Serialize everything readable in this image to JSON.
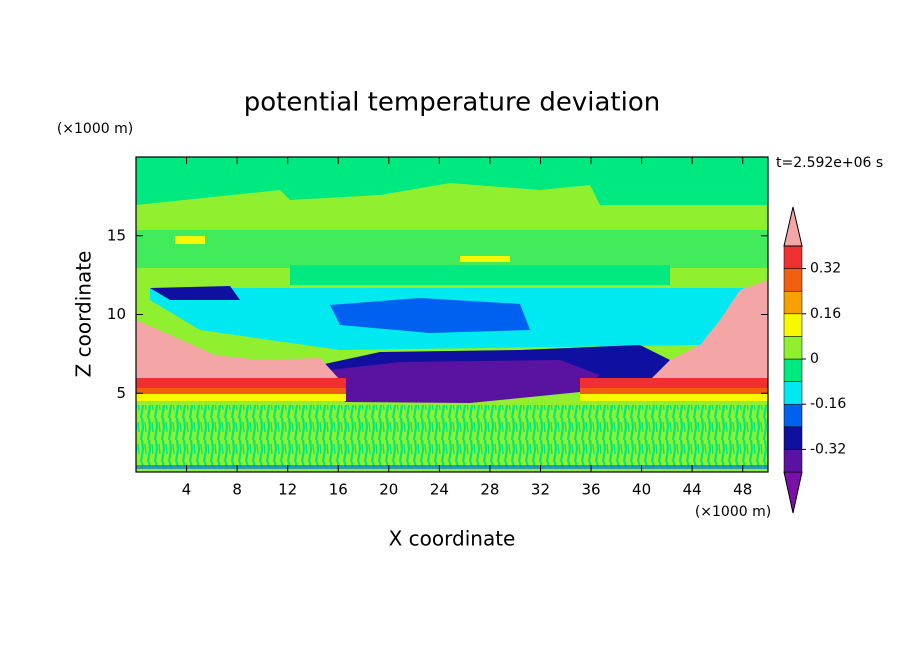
{
  "chart_data": {
    "type": "contour",
    "title": "potential temperature deviation",
    "x_label": "X coordinate",
    "y_label": "Z coordinate",
    "x_unit": "(×1000 m)",
    "y_unit": "(×1000 m)",
    "time_label": "t=2.592e+06 s",
    "xlim": [
      0,
      50
    ],
    "ylim": [
      0,
      20
    ],
    "xticks": [
      4,
      8,
      12,
      16,
      20,
      24,
      28,
      32,
      36,
      40,
      44,
      48
    ],
    "yticks": [
      5,
      10,
      15
    ],
    "levels": [
      -0.4,
      -0.32,
      -0.24,
      -0.16,
      -0.08,
      0,
      0.08,
      0.16,
      0.24,
      0.32,
      0.4
    ],
    "level_colors": [
      "#7a10a8",
      "#5a12a0",
      "#1010a0",
      "#0060f0",
      "#00e8f0",
      "#00e880",
      "#90f030",
      "#f8f800",
      "#f8a000",
      "#f06010",
      "#f03030",
      "#f4a6a6"
    ],
    "colorbar_ticks": [
      0.32,
      0.16,
      0,
      -0.16,
      -0.32
    ]
  }
}
